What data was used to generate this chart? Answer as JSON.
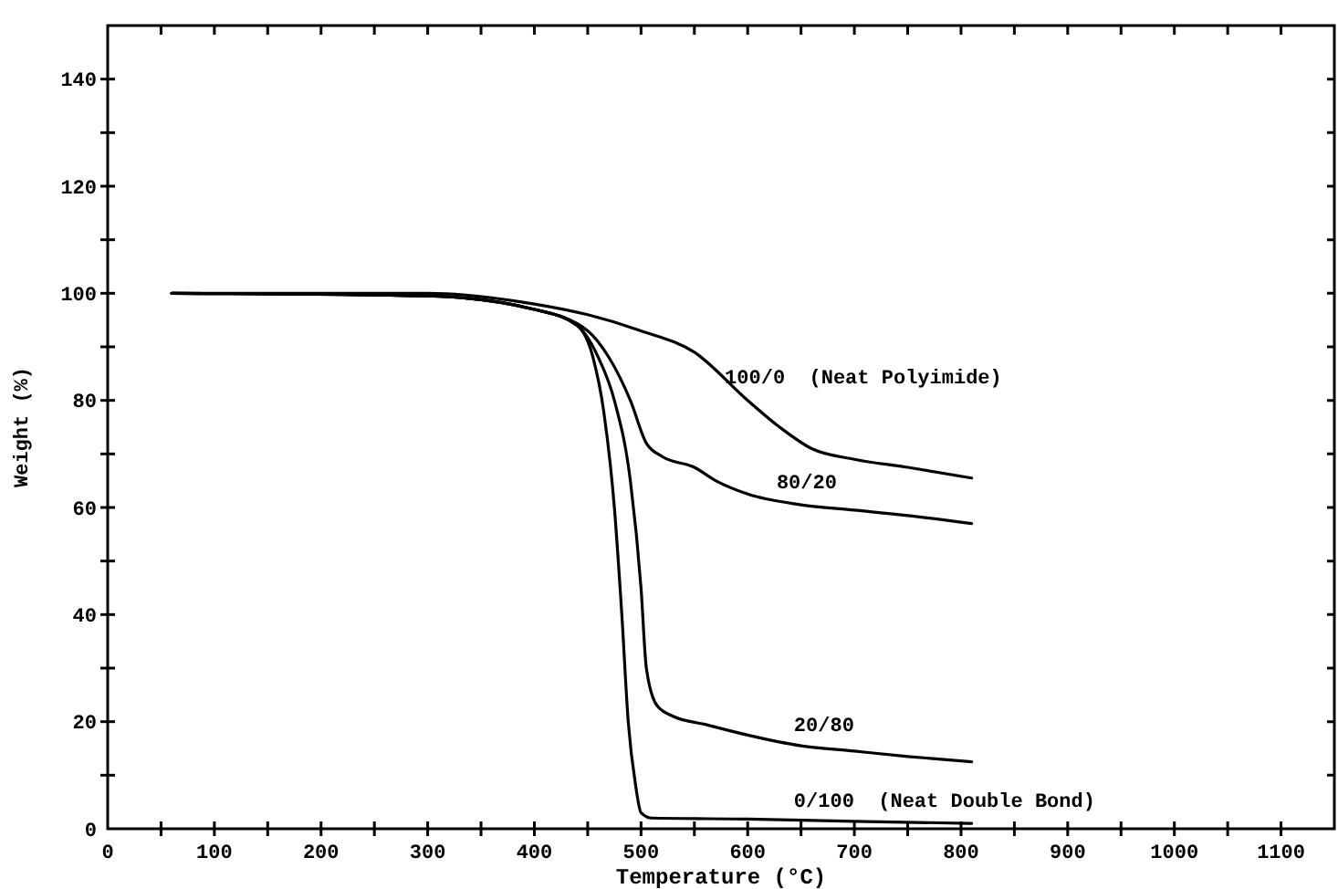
{
  "chart_data": {
    "type": "line",
    "xlabel": "Temperature (°C)",
    "ylabel": "Weight (%)",
    "xlim": [
      0,
      1150
    ],
    "ylim": [
      0,
      150
    ],
    "xticks": [
      0,
      {
        "value": 50,
        "label": null
      },
      100,
      {
        "value": 150,
        "label": null
      },
      200,
      {
        "value": 250,
        "label": null
      },
      300,
      {
        "value": 350,
        "label": null
      },
      400,
      {
        "value": 450,
        "label": null
      },
      500,
      {
        "value": 550,
        "label": null
      },
      600,
      {
        "value": 650,
        "label": null
      },
      700,
      {
        "value": 750,
        "label": null
      },
      800,
      {
        "value": 850,
        "label": null
      },
      900,
      {
        "value": 950,
        "label": null
      },
      1000,
      {
        "value": 1050,
        "label": null
      },
      1100
    ],
    "yticks": [
      0,
      {
        "value": 10,
        "label": null
      },
      20,
      {
        "value": 30,
        "label": null
      },
      40,
      {
        "value": 50,
        "label": null
      },
      60,
      {
        "value": 70,
        "label": null
      },
      80,
      {
        "value": 90,
        "label": null
      },
      100,
      {
        "value": 110,
        "label": null
      },
      120,
      {
        "value": 130,
        "label": null
      },
      140
    ],
    "grid": false,
    "legend": false,
    "marker": "none",
    "line_style": "solid",
    "series": [
      {
        "name": "100/0  (Neat Polyimide)",
        "color": "#000000",
        "x": [
          60,
          300,
          400,
          450,
          500,
          550,
          600,
          630,
          660,
          700,
          750,
          810
        ],
        "values": [
          100,
          100,
          98,
          96,
          93,
          89,
          80,
          75,
          71,
          69,
          67.5,
          65.5
        ]
      },
      {
        "name": "80/20",
        "color": "#000000",
        "x": [
          60,
          300,
          400,
          450,
          470,
          490,
          505,
          520,
          550,
          570,
          600,
          650,
          700,
          750,
          810
        ],
        "values": [
          100,
          99.5,
          97,
          93,
          88,
          80,
          72,
          69.5,
          67.5,
          65,
          62.5,
          60.5,
          59.5,
          58.5,
          57
        ]
      },
      {
        "name": "20/80",
        "color": "#000000",
        "x": [
          60,
          300,
          400,
          440,
          460,
          475,
          490,
          500,
          505,
          515,
          530,
          560,
          600,
          650,
          700,
          750,
          810
        ],
        "values": [
          100,
          99.5,
          97,
          94,
          88,
          80,
          65,
          45,
          30,
          23,
          21,
          19.5,
          17.5,
          15.5,
          14.5,
          13.5,
          12.5
        ]
      },
      {
        "name": "0/100  (Neat Double Bond)",
        "color": "#000000",
        "x": [
          60,
          300,
          400,
          440,
          455,
          465,
          475,
          482,
          488,
          495,
          500,
          510,
          600,
          700,
          810
        ],
        "values": [
          100,
          99.5,
          97,
          94,
          88,
          78,
          60,
          40,
          20,
          8,
          3,
          2,
          1.8,
          1.4,
          1
        ]
      }
    ]
  }
}
